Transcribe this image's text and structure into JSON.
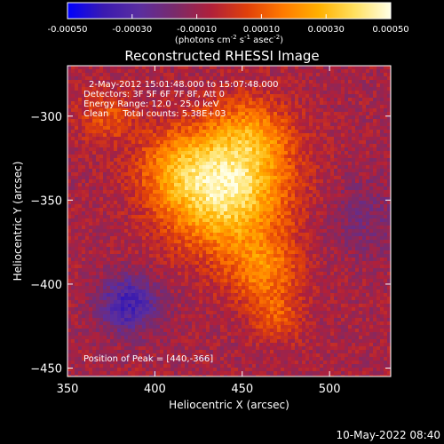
{
  "colorbar": {
    "tick_labels": [
      "-0.00050",
      "-0.00030",
      "-0.00010",
      "0.00010",
      "0.00030",
      "0.00050"
    ],
    "tick_values": [
      -0.0005,
      -0.0003,
      -0.0001,
      0.0001,
      0.0003,
      0.0005
    ],
    "range": [
      -0.0005,
      0.0005
    ],
    "units_base": "(photons cm",
    "units_exp1": "-2",
    "units_mid": " s",
    "units_exp2": "-1",
    "units_mid2": " asec",
    "units_exp3": "-2",
    "units_end": ")",
    "colormap": [
      "#0000ff",
      "#3a1ab0",
      "#5a2ea0",
      "#7a2a6a",
      "#b0203a",
      "#e0400a",
      "#ff7a00",
      "#ffb000",
      "#ffe060",
      "#ffffe6"
    ]
  },
  "chart_data": {
    "type": "heatmap",
    "title": "Reconstructed RHESSI Image",
    "xlabel": "Heliocentric X (arcsec)",
    "ylabel": "Heliocentric Y (arcsec)",
    "x_ticks": [
      350,
      400,
      450,
      500
    ],
    "y_ticks": [
      -300,
      -350,
      -400,
      -450
    ],
    "xlim": [
      350,
      535
    ],
    "ylim": [
      -455,
      -270
    ],
    "annotations": [
      "2-May-2012 15:01:48.000 to 15:07:48.000",
      "Detectors: 3F 5F 6F 7F 8F, Att 0",
      "Energy Range: 12.0 - 25.0 keV",
      "Clean     Total counts: 5.38E+03"
    ],
    "peak_label": "Position of Peak = [440,-366]",
    "peak_position": [
      440,
      -366
    ],
    "value_range": [
      -0.0005,
      0.0005
    ]
  },
  "footer": {
    "timestamp": "10-May-2022 08:40"
  }
}
